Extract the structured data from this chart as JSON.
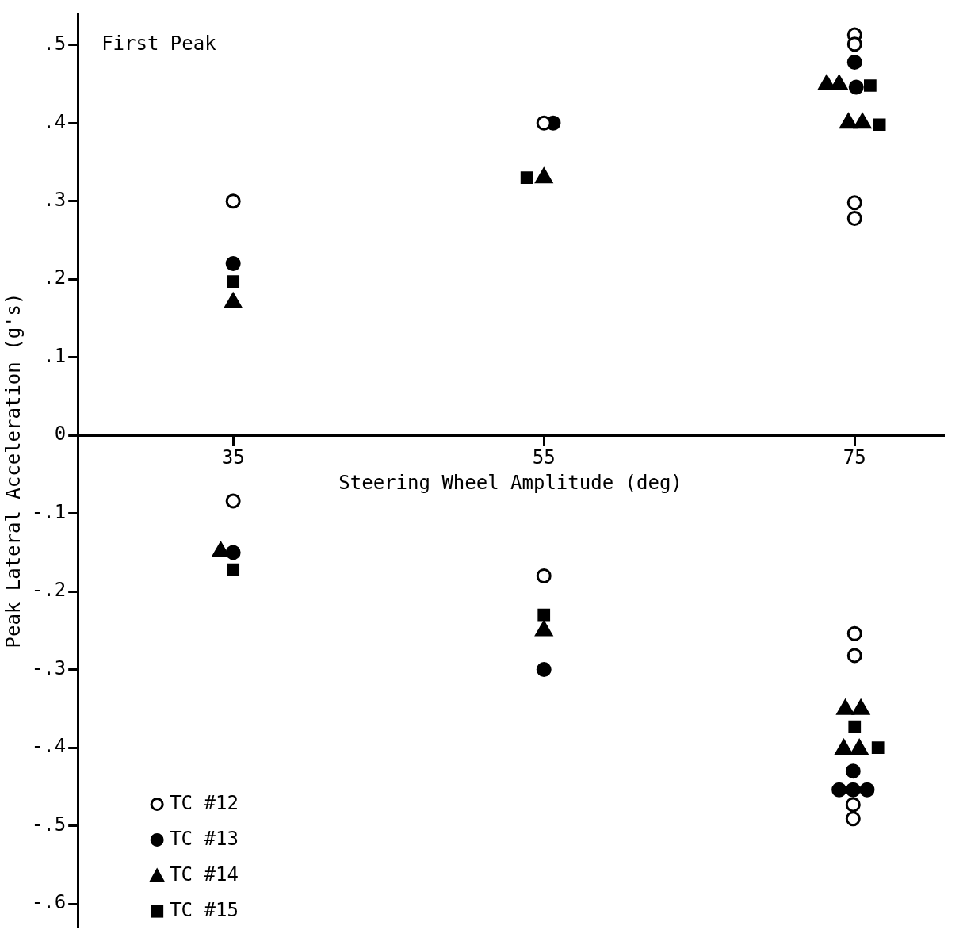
{
  "chart_data": {
    "type": "scatter",
    "xlabel": "Steering Wheel Amplitude (deg)",
    "ylabel": "Peak Lateral Acceleration (g's)",
    "annotations": [
      "First Peak"
    ],
    "xlim": [
      25,
      80.7
    ],
    "xticks": [
      35,
      55,
      75
    ],
    "ylim": [
      -0.63,
      0.54
    ],
    "yticks": [
      {
        "value": -0.6,
        "label": "-.6"
      },
      {
        "value": -0.5,
        "label": "-.5"
      },
      {
        "value": -0.4,
        "label": "-.4"
      },
      {
        "value": -0.3,
        "label": "-.3"
      },
      {
        "value": -0.2,
        "label": "-.2"
      },
      {
        "value": -0.1,
        "label": "-.1"
      },
      0,
      {
        "value": 0.1,
        "label": ".1"
      },
      {
        "value": 0.2,
        "label": ".2"
      },
      {
        "value": 0.3,
        "label": ".3"
      },
      {
        "value": 0.4,
        "label": ".4"
      },
      {
        "value": 0.5,
        "label": ".5"
      }
    ],
    "grid": false,
    "legend": "bottom left",
    "series": [
      {
        "name": "TC #12",
        "color": "#000000",
        "marker": "circle-open",
        "x": [
          35,
          35,
          55,
          55,
          75,
          75,
          75,
          75,
          75,
          75,
          74.9,
          74.9
        ],
        "values": [
          0.3,
          -0.084,
          0.4,
          -0.18,
          0.513,
          0.501,
          0.298,
          0.278,
          -0.254,
          -0.282,
          -0.473,
          -0.491
        ]
      },
      {
        "name": "TC #13",
        "color": "#000000",
        "marker": "circle",
        "x": [
          35,
          35,
          55.6,
          55,
          75,
          75.1,
          74.9,
          74,
          74.9,
          75.8
        ],
        "values": [
          0.22,
          -0.15,
          0.4,
          -0.3,
          0.478,
          0.446,
          -0.43,
          -0.454,
          -0.454,
          -0.454
        ]
      },
      {
        "name": "TC #14",
        "color": "#000000",
        "marker": "triangle",
        "x": [
          35,
          34.2,
          55,
          55,
          73.2,
          74,
          74.6,
          75.5,
          74.4,
          75.4,
          74.3,
          75.3
        ],
        "values": [
          0.17,
          -0.149,
          0.33,
          -0.25,
          0.449,
          0.449,
          0.4,
          0.4,
          -0.351,
          -0.351,
          -0.402,
          -0.402
        ]
      },
      {
        "name": "TC #15",
        "color": "#000000",
        "marker": "square",
        "x": [
          35,
          35,
          53.9,
          55,
          76,
          76.6,
          75,
          76.5
        ],
        "values": [
          0.197,
          -0.172,
          0.33,
          -0.23,
          0.448,
          0.398,
          -0.373,
          -0.4
        ]
      }
    ]
  }
}
